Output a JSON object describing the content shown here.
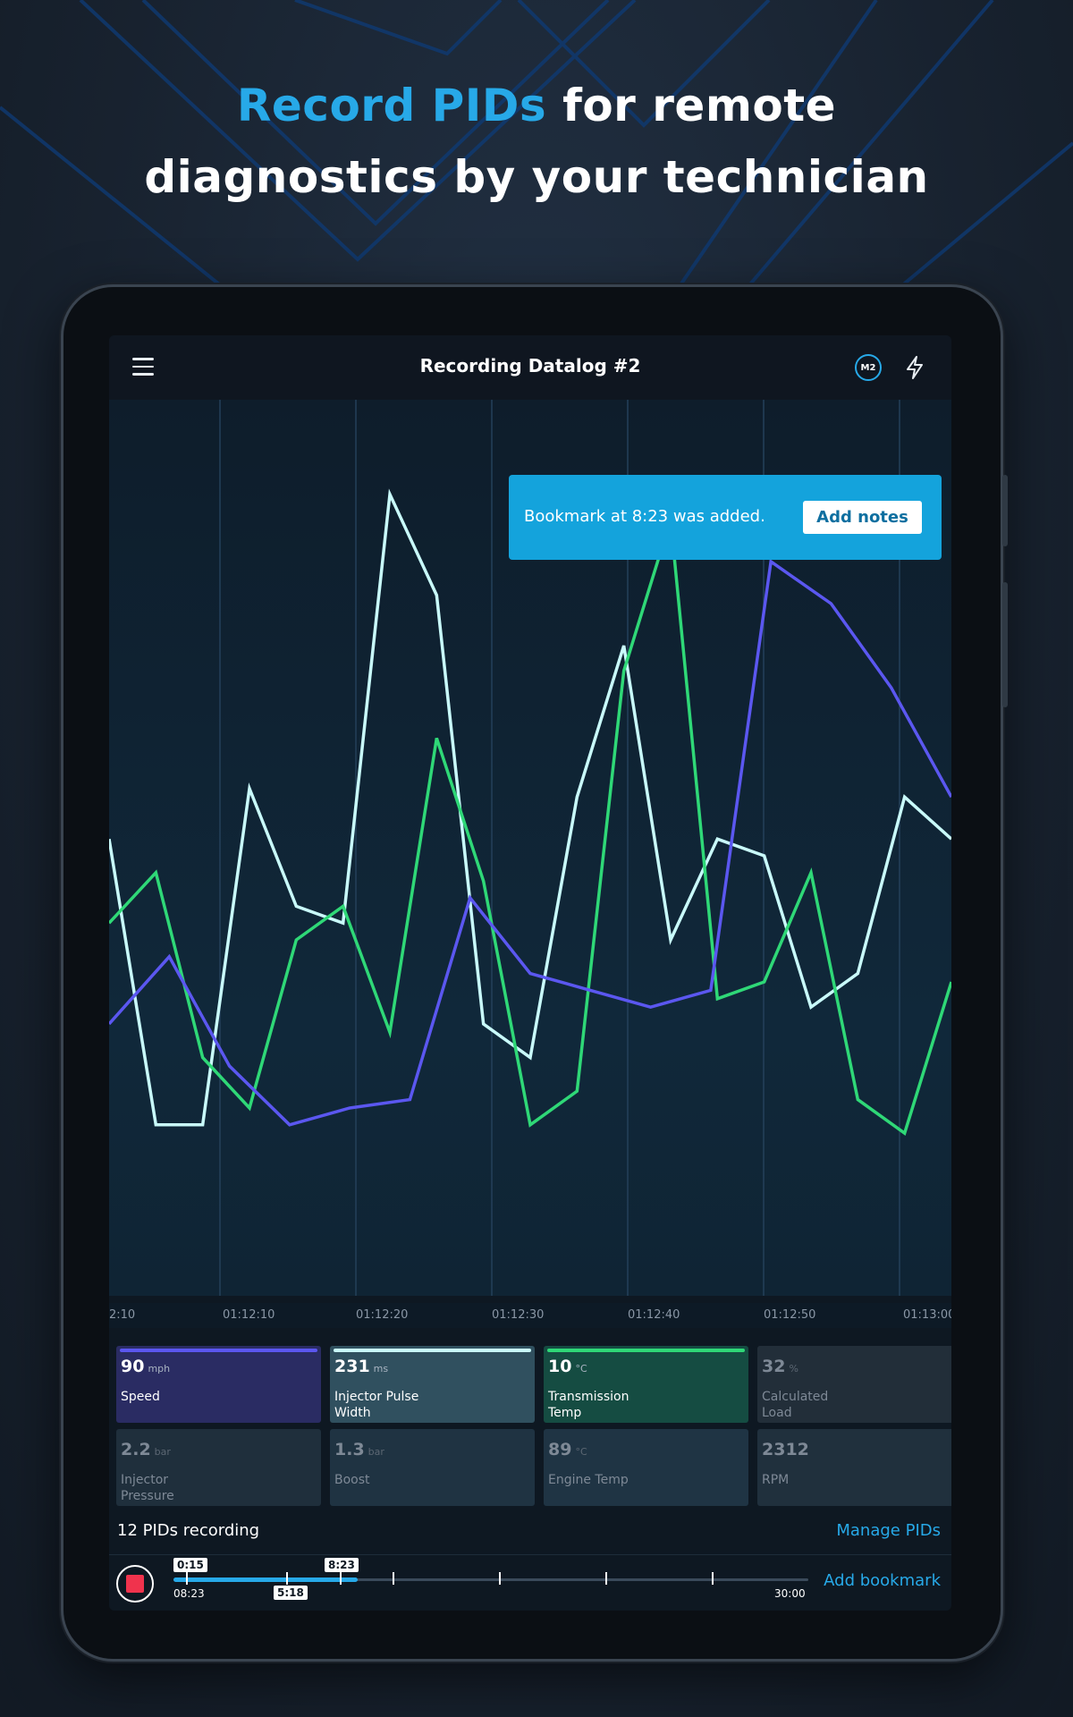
{
  "headline": {
    "accent": "Record PIDs",
    "rest_line1": " for remote",
    "line2": "diagnostics by your technician"
  },
  "colors": {
    "accent": "#27a9e8",
    "speed": "#5b57f0",
    "injector": "#c9fbfb",
    "transmission": "#2fd877",
    "toast": "#14a3dc",
    "record": "#f0334d"
  },
  "appbar": {
    "menu_icon": "hamburger-icon",
    "title": "Recording Datalog #2",
    "device_badge": "M2",
    "action_icon": "lightning-bolt-icon"
  },
  "toast": {
    "message": "Bookmark at 8:23 was added.",
    "button_label": "Add notes"
  },
  "chart_data": {
    "type": "line",
    "x_ticks": [
      "2:10",
      "01:12:10",
      "01:12:20",
      "01:12:30",
      "01:12:40",
      "01:12:50",
      "01:13:00"
    ],
    "grid": "vertical",
    "series": [
      {
        "name": "Injector Pulse Width",
        "color": "#c9fbfb",
        "values": [
          52,
          18,
          18,
          58,
          44,
          42,
          93,
          81,
          30,
          26,
          57,
          75,
          40,
          52,
          50,
          32,
          36,
          57,
          52
        ]
      },
      {
        "name": "Transmission Temp",
        "color": "#2fd877",
        "values": [
          42,
          48,
          26,
          20,
          40,
          44,
          29,
          64,
          47,
          18,
          22,
          72,
          90,
          33,
          35,
          48,
          21,
          17,
          35
        ]
      },
      {
        "name": "Speed",
        "color": "#5b57f0",
        "values": [
          30,
          38,
          25,
          18,
          20,
          21,
          45,
          36,
          34,
          32,
          34,
          85,
          80,
          70,
          57
        ]
      }
    ]
  },
  "pids": [
    {
      "value": "90",
      "unit": "mph",
      "name": "Speed"
    },
    {
      "value": "231",
      "unit": "ms",
      "name": "Injector Pulse Width"
    },
    {
      "value": "10",
      "unit": "°C",
      "name": "Transmission Temp"
    },
    {
      "value": "32",
      "unit": "%",
      "name": "Calculated Load"
    },
    {
      "value": "2.2",
      "unit": "bar",
      "name": "Injector Pressure"
    },
    {
      "value": "1.3",
      "unit": "bar",
      "name": "Boost"
    },
    {
      "value": "89",
      "unit": "°C",
      "name": "Engine Temp"
    },
    {
      "value": "2312",
      "unit": "",
      "name": "RPM"
    }
  ],
  "footer": {
    "pid_count": "12 PIDs recording",
    "manage_label": "Manage PIDs"
  },
  "player": {
    "record_icon": "stop-record-icon",
    "progress": 0.29,
    "tag_start": "0:15",
    "tag_mid": "5:18",
    "tag_bookmark": "8:23",
    "time_current": "08:23",
    "time_total": "30:00",
    "add_bookmark_label": "Add bookmark"
  }
}
